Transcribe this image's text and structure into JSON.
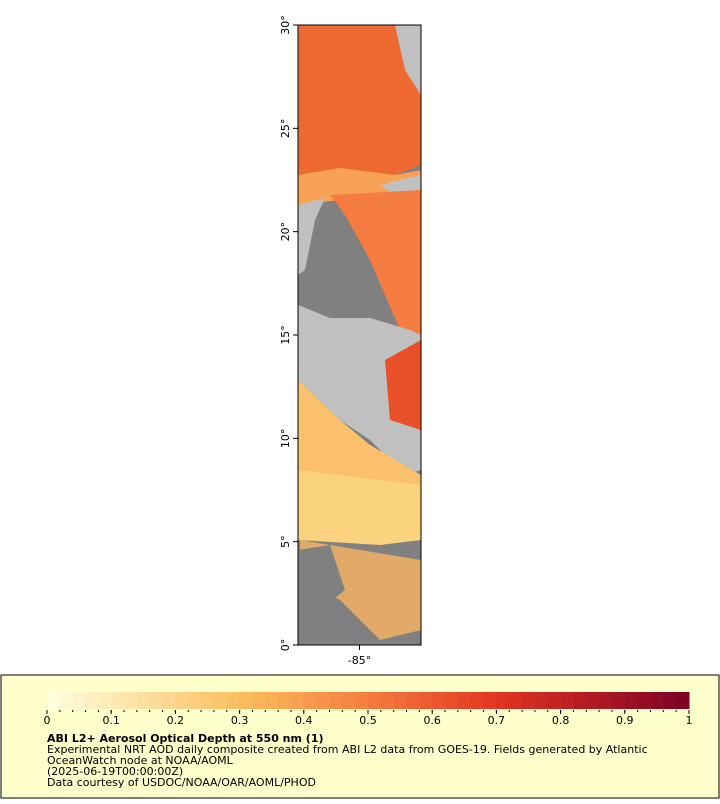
{
  "map": {
    "lat_range": [
      0,
      30
    ],
    "lon_range": [
      -88,
      -82
    ],
    "lat_ticks": [
      {
        "value": 0,
        "label": "0°"
      },
      {
        "value": 5,
        "label": "5°"
      },
      {
        "value": 10,
        "label": "10°"
      },
      {
        "value": 15,
        "label": "15°"
      },
      {
        "value": 20,
        "label": "20°"
      },
      {
        "value": 25,
        "label": "25°"
      },
      {
        "value": 30,
        "label": "30°"
      }
    ],
    "lon_ticks": [
      {
        "value": -85,
        "label": "-85°"
      }
    ]
  },
  "colorbar": {
    "range": [
      0,
      1
    ],
    "ticks": [
      0,
      0.1,
      0.2,
      0.3,
      0.4,
      0.5,
      0.6,
      0.7,
      0.8,
      0.9,
      1
    ]
  },
  "legend": {
    "title": "ABI L2+ Aerosol Optical Depth at 550 nm (1)",
    "lines": [
      "Experimental NRT AOD daily composite created from ABI L2 data from GOES-19. Fields generated by Atlantic",
      "OceanWatch node at NOAA/AOML",
      "(2025-06-19T00:00:00Z)",
      "Data courtesy of USDOC/NOAA/OAR/AOML/PHOD"
    ]
  }
}
